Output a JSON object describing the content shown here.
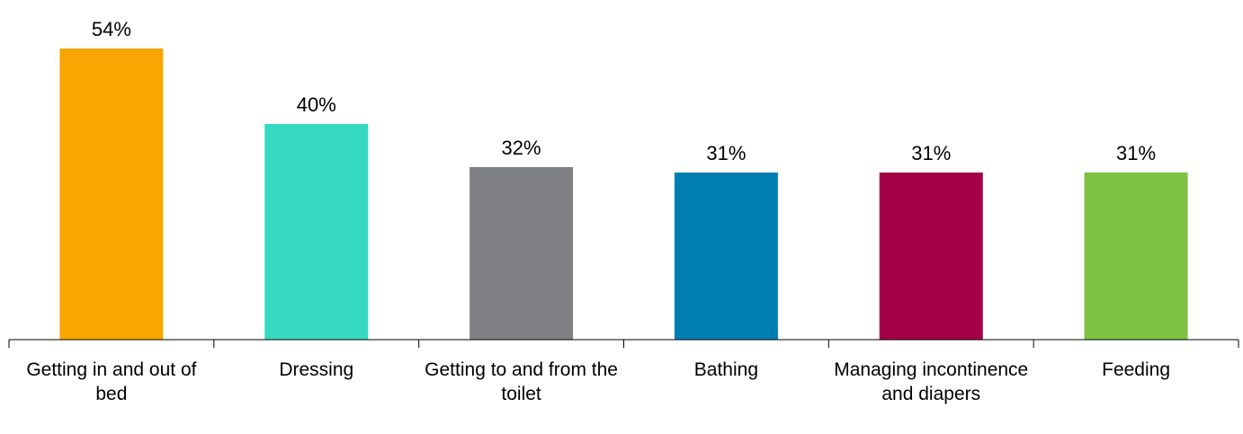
{
  "chart_data": {
    "type": "bar",
    "title": "",
    "xlabel": "",
    "ylabel": "",
    "ylim": [
      0,
      60
    ],
    "grid": false,
    "legend": "none",
    "categories": [
      "Getting in and out of bed",
      "Dressing",
      "Getting to and from the toilet",
      "Bathing",
      "Managing incontinence and diapers",
      "Feeding"
    ],
    "values": [
      54,
      40,
      32,
      31,
      31,
      31
    ],
    "value_labels": [
      "54%",
      "40%",
      "32%",
      "31%",
      "31%",
      "31%"
    ],
    "colors": [
      "#F9A602",
      "#35D9C2",
      "#808184",
      "#007EB4",
      "#A30046",
      "#7DC243"
    ]
  }
}
